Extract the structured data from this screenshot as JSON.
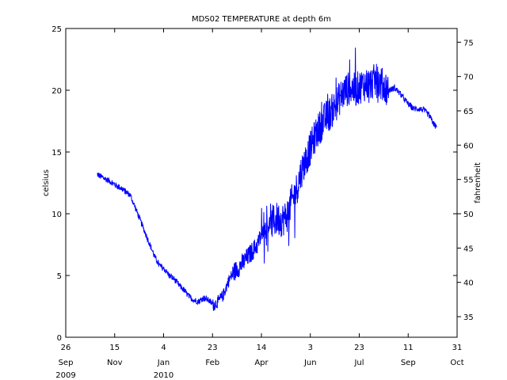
{
  "chart_data": {
    "type": "line",
    "title": "MDS02 TEMPERATURE at depth 6m",
    "ylabel": "celsius",
    "ylabel_right": "fahrenheit",
    "ylim": [
      0,
      25
    ],
    "yticks": [
      0,
      5,
      10,
      15,
      20,
      25
    ],
    "ylim_right": [
      32,
      77
    ],
    "yticks_right": [
      35,
      40,
      45,
      50,
      55,
      60,
      65,
      70,
      75
    ],
    "xlim": [
      "2009-09-26",
      "2010-10-31"
    ],
    "xticks": [
      {
        "date": "2009-09-26",
        "day": "26",
        "month": "Sep",
        "year": "2009"
      },
      {
        "date": "2009-11-15",
        "day": "15",
        "month": "Nov",
        "year": ""
      },
      {
        "date": "2010-01-04",
        "day": "4",
        "month": "Jan",
        "year": "2010"
      },
      {
        "date": "2010-02-23",
        "day": "23",
        "month": "Feb",
        "year": ""
      },
      {
        "date": "2010-04-14",
        "day": "14",
        "month": "Apr",
        "year": ""
      },
      {
        "date": "2010-06-03",
        "day": "3",
        "month": "Jun",
        "year": ""
      },
      {
        "date": "2010-07-23",
        "day": "23",
        "month": "Jul",
        "year": ""
      },
      {
        "date": "2010-09-11",
        "day": "11",
        "month": "Sep",
        "year": ""
      },
      {
        "date": "2010-10-31",
        "day": "31",
        "month": "Oct",
        "year": ""
      }
    ],
    "grid": false,
    "color": "#0000ff",
    "series": [
      {
        "x": [
          "2009-10-28",
          "2009-11-01",
          "2009-11-06",
          "2009-11-11",
          "2009-11-16",
          "2009-11-21",
          "2009-11-26",
          "2009-12-01",
          "2009-12-06",
          "2009-12-11",
          "2009-12-16",
          "2009-12-21",
          "2009-12-26",
          "2009-12-31",
          "2010-01-05",
          "2010-01-10",
          "2010-01-15",
          "2010-01-20",
          "2010-01-25",
          "2010-01-30",
          "2010-02-04",
          "2010-02-09",
          "2010-02-14",
          "2010-02-19",
          "2010-02-24",
          "2010-03-01",
          "2010-03-06",
          "2010-03-11",
          "2010-03-16",
          "2010-03-21",
          "2010-03-26",
          "2010-03-31",
          "2010-04-05",
          "2010-04-10",
          "2010-04-15",
          "2010-04-20",
          "2010-04-25",
          "2010-04-30",
          "2010-05-05",
          "2010-05-10",
          "2010-05-15",
          "2010-05-20",
          "2010-05-25",
          "2010-05-30",
          "2010-06-04",
          "2010-06-09",
          "2010-06-14",
          "2010-06-19",
          "2010-06-24",
          "2010-06-29",
          "2010-07-04",
          "2010-07-09",
          "2010-07-14",
          "2010-07-19",
          "2010-07-24",
          "2010-07-29",
          "2010-08-03",
          "2010-08-08",
          "2010-08-13",
          "2010-08-18",
          "2010-08-23",
          "2010-08-28",
          "2010-09-02",
          "2010-09-07",
          "2010-09-12",
          "2010-09-17",
          "2010-09-22",
          "2010-09-27",
          "2010-10-02",
          "2010-10-07",
          "2010-10-10"
        ],
        "y": [
          13.2,
          13.0,
          12.8,
          12.6,
          12.3,
          12.1,
          11.8,
          11.5,
          10.5,
          9.5,
          8.5,
          7.5,
          6.5,
          5.8,
          5.5,
          5.0,
          4.7,
          4.2,
          3.8,
          3.3,
          3.0,
          2.9,
          3.2,
          3.0,
          2.6,
          2.9,
          3.4,
          4.5,
          5.2,
          5.6,
          6.0,
          6.5,
          7.0,
          7.5,
          8.5,
          9.0,
          9.3,
          9.6,
          9.5,
          9.8,
          11.0,
          12.0,
          13.5,
          14.5,
          15.5,
          16.5,
          17.2,
          17.8,
          18.2,
          18.8,
          19.5,
          20.0,
          20.2,
          20.0,
          20.3,
          20.5,
          20.5,
          20.8,
          20.6,
          20.3,
          20.0,
          20.2,
          19.8,
          19.3,
          18.8,
          18.5,
          18.5,
          18.4,
          18.0,
          17.3,
          17.0
        ]
      }
    ]
  }
}
